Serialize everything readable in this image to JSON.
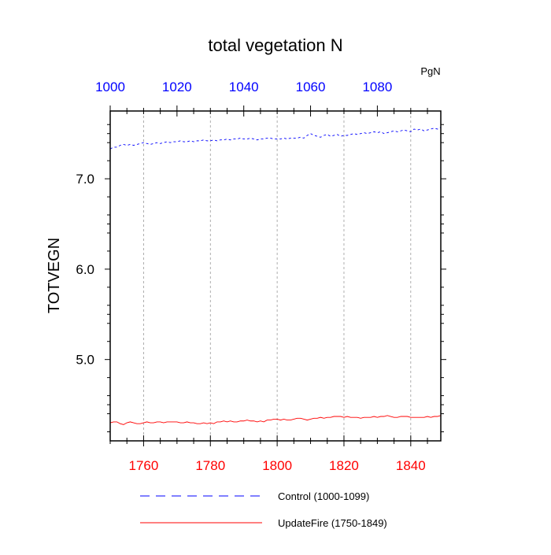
{
  "chart_data": {
    "type": "line",
    "title": "total vegetation N",
    "units": "PgN",
    "ylabel": "TOTVEGN",
    "ylim": [
      4.1,
      7.75
    ],
    "yticks": [
      5.0,
      6.0,
      7.0
    ],
    "ytick_labels": [
      "5.0",
      "6.0",
      "7.0"
    ],
    "grid": "vertical dashed",
    "legend_position": "bottom",
    "colors": {
      "top_axis": "#0000ff",
      "bottom_axis": "#ff0000"
    },
    "top_axis": {
      "xlim": [
        1000,
        1099
      ],
      "ticks": [
        1000,
        1020,
        1040,
        1060,
        1080
      ],
      "tick_labels": [
        "1000",
        "1020",
        "1040",
        "1060",
        "1080"
      ]
    },
    "bottom_axis": {
      "xlim": [
        1750,
        1849
      ],
      "ticks": [
        1760,
        1780,
        1800,
        1820,
        1840
      ],
      "tick_labels": [
        "1760",
        "1780",
        "1800",
        "1820",
        "1840"
      ]
    },
    "series": [
      {
        "name": "Control (1000-1099)",
        "color": "#0000ff",
        "dash": "dashed",
        "axis": "top",
        "x_start": 1000,
        "x_step": 1,
        "values": [
          7.33,
          7.35,
          7.35,
          7.37,
          7.38,
          7.37,
          7.38,
          7.37,
          7.38,
          7.39,
          7.4,
          7.39,
          7.38,
          7.39,
          7.4,
          7.39,
          7.4,
          7.41,
          7.4,
          7.41,
          7.41,
          7.42,
          7.41,
          7.41,
          7.42,
          7.41,
          7.42,
          7.42,
          7.43,
          7.42,
          7.42,
          7.43,
          7.42,
          7.43,
          7.43,
          7.44,
          7.43,
          7.44,
          7.44,
          7.45,
          7.44,
          7.44,
          7.45,
          7.44,
          7.43,
          7.44,
          7.44,
          7.45,
          7.45,
          7.44,
          7.44,
          7.44,
          7.45,
          7.44,
          7.45,
          7.45,
          7.45,
          7.46,
          7.45,
          7.48,
          7.5,
          7.48,
          7.47,
          7.46,
          7.48,
          7.49,
          7.47,
          7.48,
          7.49,
          7.47,
          7.48,
          7.48,
          7.49,
          7.5,
          7.49,
          7.5,
          7.51,
          7.5,
          7.51,
          7.52,
          7.51,
          7.52,
          7.5,
          7.51,
          7.52,
          7.53,
          7.52,
          7.53,
          7.54,
          7.53,
          7.52,
          7.55,
          7.54,
          7.55,
          7.53,
          7.54,
          7.55,
          7.56,
          7.55,
          7.57
        ]
      },
      {
        "name": "UpdateFire (1750-1849)",
        "color": "#ff0000",
        "dash": "solid",
        "axis": "bottom",
        "x_start": 1750,
        "x_step": 1,
        "values": [
          4.3,
          4.31,
          4.31,
          4.29,
          4.28,
          4.3,
          4.31,
          4.3,
          4.29,
          4.29,
          4.3,
          4.31,
          4.3,
          4.3,
          4.31,
          4.31,
          4.3,
          4.31,
          4.31,
          4.31,
          4.31,
          4.3,
          4.3,
          4.31,
          4.3,
          4.3,
          4.29,
          4.29,
          4.3,
          4.29,
          4.3,
          4.29,
          4.31,
          4.31,
          4.32,
          4.31,
          4.32,
          4.31,
          4.31,
          4.32,
          4.32,
          4.33,
          4.32,
          4.32,
          4.31,
          4.32,
          4.31,
          4.33,
          4.33,
          4.34,
          4.34,
          4.33,
          4.34,
          4.33,
          4.33,
          4.34,
          4.35,
          4.35,
          4.34,
          4.33,
          4.34,
          4.35,
          4.35,
          4.36,
          4.35,
          4.36,
          4.36,
          4.37,
          4.37,
          4.37,
          4.36,
          4.37,
          4.36,
          4.36,
          4.36,
          4.35,
          4.36,
          4.36,
          4.36,
          4.37,
          4.36,
          4.37,
          4.37,
          4.38,
          4.37,
          4.36,
          4.36,
          4.37,
          4.37,
          4.37,
          4.36,
          4.36,
          4.36,
          4.36,
          4.36,
          4.37,
          4.36,
          4.37,
          4.37,
          4.38
        ]
      }
    ]
  }
}
